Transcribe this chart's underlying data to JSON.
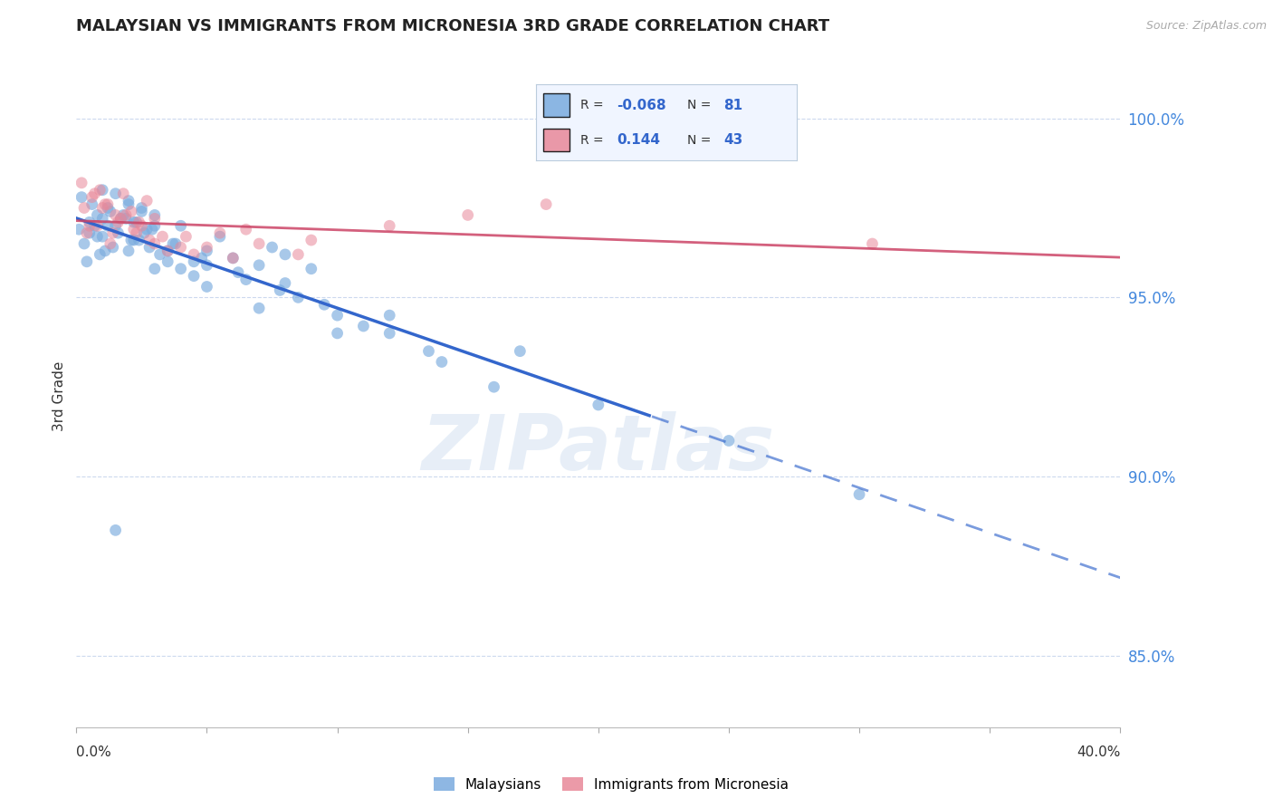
{
  "title": "MALAYSIAN VS IMMIGRANTS FROM MICRONESIA 3RD GRADE CORRELATION CHART",
  "source": "Source: ZipAtlas.com",
  "ylabel": "3rd Grade",
  "ytick_values": [
    100.0,
    95.0,
    90.0,
    85.0
  ],
  "ytick_labels": [
    "100.0%",
    "95.0%",
    "90.0%",
    "85.0%"
  ],
  "ymax": 101.5,
  "ymin": 83.0,
  "xmin": 0.0,
  "xmax": 40.0,
  "R_blue": -0.068,
  "N_blue": 81,
  "R_pink": 0.144,
  "N_pink": 43,
  "blue_color": "#7aabde",
  "pink_color": "#e88899",
  "blue_line_color": "#3366cc",
  "pink_line_color": "#cc4466",
  "blue_scatter_alpha": 0.65,
  "pink_scatter_alpha": 0.55,
  "marker_size": 85,
  "trend_split_x": 22.0,
  "blue_points_x": [
    0.5,
    1.0,
    1.2,
    1.5,
    1.8,
    2.0,
    2.2,
    2.5,
    2.7,
    3.0,
    0.3,
    0.8,
    1.1,
    1.6,
    2.1,
    2.8,
    3.2,
    3.5,
    4.0,
    4.5,
    0.2,
    0.6,
    1.3,
    1.9,
    2.3,
    2.9,
    3.8,
    5.0,
    6.0,
    7.0,
    1.0,
    1.5,
    2.0,
    2.5,
    3.0,
    4.0,
    5.5,
    7.5,
    8.0,
    9.0,
    0.4,
    0.9,
    1.4,
    2.4,
    3.5,
    5.0,
    6.5,
    8.5,
    10.0,
    12.0,
    0.7,
    1.7,
    2.6,
    3.7,
    4.8,
    6.2,
    7.8,
    9.5,
    11.0,
    13.5,
    0.1,
    0.5,
    1.0,
    2.0,
    3.0,
    5.0,
    7.0,
    10.0,
    14.0,
    16.0,
    0.8,
    1.2,
    2.2,
    4.5,
    8.0,
    12.0,
    17.0,
    20.0,
    25.0,
    30.0,
    1.5
  ],
  "blue_points_y": [
    96.8,
    97.2,
    97.5,
    97.0,
    97.3,
    97.6,
    97.1,
    97.4,
    96.9,
    97.0,
    96.5,
    96.7,
    96.3,
    96.8,
    96.6,
    96.4,
    96.2,
    96.0,
    95.8,
    95.6,
    97.8,
    97.6,
    97.4,
    97.2,
    97.1,
    96.9,
    96.5,
    96.3,
    96.1,
    95.9,
    98.0,
    97.9,
    97.7,
    97.5,
    97.3,
    97.0,
    96.7,
    96.4,
    96.2,
    95.8,
    96.0,
    96.2,
    96.4,
    96.6,
    96.3,
    95.9,
    95.5,
    95.0,
    94.5,
    94.0,
    97.0,
    97.2,
    96.8,
    96.5,
    96.1,
    95.7,
    95.2,
    94.8,
    94.2,
    93.5,
    96.9,
    97.1,
    96.7,
    96.3,
    95.8,
    95.3,
    94.7,
    94.0,
    93.2,
    92.5,
    97.3,
    97.0,
    96.6,
    96.0,
    95.4,
    94.5,
    93.5,
    92.0,
    91.0,
    89.5,
    88.5
  ],
  "pink_points_x": [
    0.3,
    0.6,
    0.9,
    1.2,
    1.5,
    1.8,
    2.1,
    2.4,
    2.7,
    3.0,
    0.4,
    0.8,
    1.3,
    1.7,
    2.2,
    2.8,
    3.5,
    4.2,
    5.0,
    6.0,
    0.2,
    0.7,
    1.1,
    1.9,
    2.5,
    3.3,
    4.0,
    5.5,
    7.0,
    8.5,
    1.0,
    1.6,
    2.3,
    3.0,
    4.5,
    6.5,
    9.0,
    12.0,
    15.0,
    18.0,
    0.5,
    1.4,
    30.5
  ],
  "pink_points_y": [
    97.5,
    97.8,
    98.0,
    97.6,
    97.3,
    97.9,
    97.4,
    97.1,
    97.7,
    97.2,
    96.8,
    97.0,
    96.5,
    97.2,
    96.9,
    96.6,
    96.3,
    96.7,
    96.4,
    96.1,
    98.2,
    97.9,
    97.6,
    97.3,
    97.0,
    96.7,
    96.4,
    96.8,
    96.5,
    96.2,
    97.5,
    97.1,
    96.8,
    96.5,
    96.2,
    96.9,
    96.6,
    97.0,
    97.3,
    97.6,
    97.0,
    96.8,
    96.5
  ],
  "watermark": "ZIPatlas",
  "legend_labels": [
    "Malaysians",
    "Immigrants from Micronesia"
  ]
}
